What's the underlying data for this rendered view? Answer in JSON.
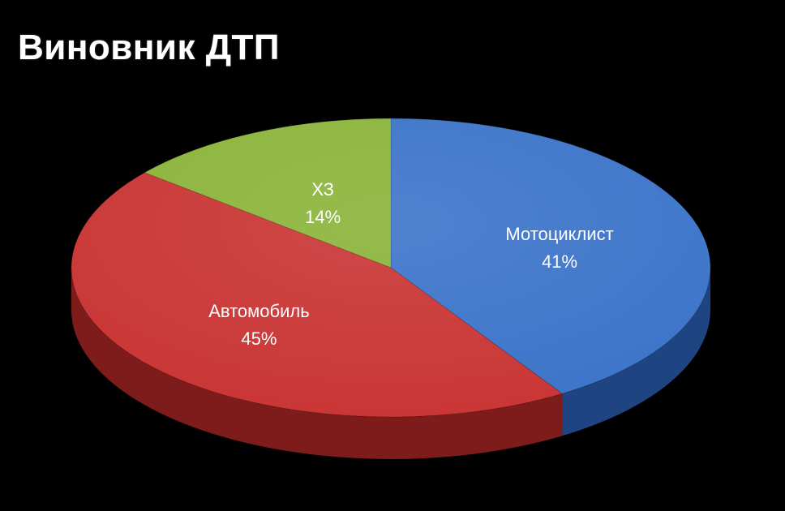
{
  "chart_data": {
    "type": "pie",
    "style": "3d",
    "title": "Виновник ДТП",
    "slices": [
      {
        "label": "Мотоциклист",
        "percent_label": "41%",
        "value": 41,
        "color": "#3c74c9",
        "side_color": "#1f4482"
      },
      {
        "label": "Автомобиль",
        "percent_label": "45%",
        "value": 45,
        "color": "#c93534",
        "side_color": "#7e1b1b"
      },
      {
        "label": "ХЗ",
        "percent_label": "14%",
        "value": 14,
        "color": "#8bb43a",
        "side_color": "#55731f"
      }
    ],
    "legend": "none",
    "data_labels": "inside"
  }
}
